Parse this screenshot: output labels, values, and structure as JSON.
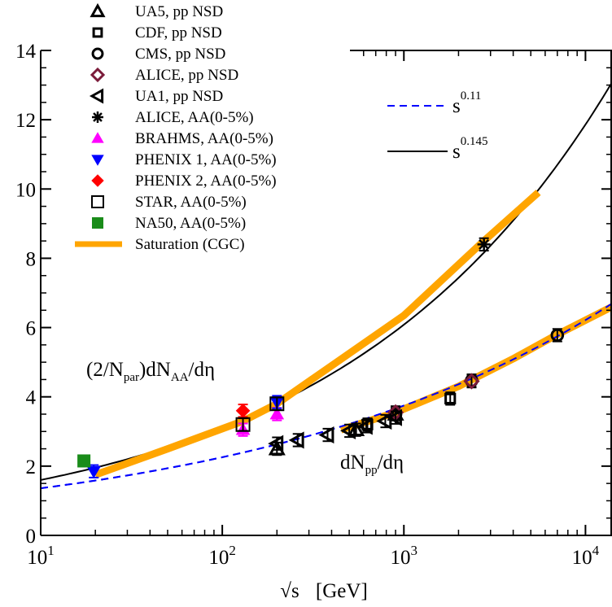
{
  "chart_data": {
    "type": "scatter",
    "x_scale": "log",
    "xlim": [
      10,
      14000
    ],
    "ylim": [
      0,
      14
    ],
    "y_ticks": [
      "0",
      "2",
      "4",
      "6",
      "8",
      "10",
      "12",
      "14"
    ],
    "x_ticks": [
      {
        "value": 10,
        "base": "10",
        "exp": "1"
      },
      {
        "value": 100,
        "base": "10",
        "exp": "2"
      },
      {
        "value": 1000,
        "base": "10",
        "exp": "3"
      },
      {
        "value": 10000,
        "base": "10",
        "exp": "4"
      }
    ],
    "xlabel": {
      "root": "√s",
      "unit": "[GeV]"
    },
    "annotation_aa": {
      "a": "(2/N",
      "sub1": "par",
      "b": ")dN",
      "sub2": "AA",
      "c": "/dη"
    },
    "annotation_pp": {
      "a": "dN",
      "sub": "pp",
      "b": "/dη"
    },
    "series": [
      {
        "name": "UA5, pp NSD",
        "marker": "triangle-up-open",
        "color": "#000000",
        "points": [
          [
            200,
            2.5
          ],
          [
            546,
            3.05
          ],
          [
            900,
            3.5
          ]
        ]
      },
      {
        "name": "CDF, pp NSD",
        "marker": "square-open-small",
        "color": "#000000",
        "points": [
          [
            630,
            3.2
          ],
          [
            1800,
            3.95
          ]
        ]
      },
      {
        "name": "CMS, pp NSD",
        "marker": "circle-open",
        "color": "#000000",
        "points": [
          [
            900,
            3.5
          ],
          [
            2360,
            4.47
          ],
          [
            7000,
            5.78
          ]
        ]
      },
      {
        "name": "ALICE, pp NSD",
        "marker": "diamond-open",
        "color": "#7b1b3a",
        "points": [
          [
            900,
            3.55
          ],
          [
            2360,
            4.45
          ]
        ]
      },
      {
        "name": "UA1, pp NSD",
        "marker": "triangle-left-open",
        "color": "#000000",
        "points": [
          [
            200,
            2.65
          ],
          [
            260,
            2.75
          ],
          [
            380,
            2.9
          ],
          [
            500,
            3.02
          ],
          [
            620,
            3.15
          ],
          [
            790,
            3.3
          ],
          [
            900,
            3.4
          ]
        ]
      },
      {
        "name": "ALICE, AA(0-5%)",
        "marker": "asterisk",
        "color": "#000000",
        "points": [
          [
            2760,
            8.4
          ]
        ]
      },
      {
        "name": "BRAHMS, AA(0-5%)",
        "marker": "triangle-up-filled",
        "color": "#ff00ff",
        "points": [
          [
            130,
            3.05
          ],
          [
            200,
            3.5
          ]
        ]
      },
      {
        "name": "PHENIX 1, AA(0-5%)",
        "marker": "triangle-down-filled",
        "color": "#0000ff",
        "points": [
          [
            19.6,
            1.85
          ],
          [
            200,
            3.85
          ]
        ]
      },
      {
        "name": "PHENIX 2, AA(0-5%)",
        "marker": "diamond-filled",
        "color": "#ff0000",
        "points": [
          [
            130,
            3.6
          ]
        ]
      },
      {
        "name": "STAR, AA(0-5%)",
        "marker": "square-open",
        "color": "#000000",
        "points": [
          [
            130,
            3.2
          ],
          [
            200,
            3.8
          ]
        ]
      },
      {
        "name": "NA50, AA(0-5%)",
        "marker": "square-filled",
        "color": "#1a8c1a",
        "points": [
          [
            17.3,
            2.15
          ]
        ]
      },
      {
        "name": "Saturation (CGC)",
        "marker": "line",
        "color": "#ffa500",
        "segments": [
          [
            [
              20,
              1.75
            ],
            [
              50,
              2.5
            ],
            [
              130,
              3.3
            ],
            [
              200,
              3.8
            ],
            [
              400,
              4.9
            ],
            [
              1000,
              6.35
            ],
            [
              2760,
              8.5
            ],
            [
              5500,
              9.9
            ]
          ],
          [
            [
              450,
              3.05
            ],
            [
              900,
              3.55
            ],
            [
              2000,
              4.3
            ],
            [
              4000,
              5.1
            ],
            [
              7000,
              5.8
            ],
            [
              14000,
              6.6
            ]
          ]
        ]
      },
      {
        "name": "s^0.11",
        "label_base": "s",
        "label_exp": "0.11",
        "marker": "dashed-line",
        "color": "#0000ff",
        "fit": {
          "a": 1.36,
          "x0": 10,
          "p": 0.22
        },
        "x_range": [
          10,
          14000
        ]
      },
      {
        "name": "s^0.145",
        "label_base": "s",
        "label_exp": "0.145",
        "marker": "solid-line",
        "color": "#000000",
        "fit": {
          "a": 1.6,
          "x0": 10,
          "p": 0.29
        },
        "x_range": [
          10,
          14000
        ]
      }
    ]
  }
}
